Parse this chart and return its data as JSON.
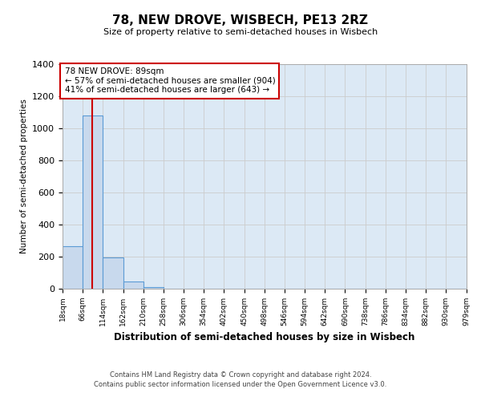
{
  "title": "78, NEW DROVE, WISBECH, PE13 2RZ",
  "subtitle": "Size of property relative to semi-detached houses in Wisbech",
  "xlabel": "Distribution of semi-detached houses by size in Wisbech",
  "ylabel": "Number of semi-detached properties",
  "bin_edges": [
    18,
    66,
    114,
    162,
    210,
    258,
    306,
    354,
    402,
    450,
    498,
    546,
    594,
    642,
    690,
    738,
    786,
    834,
    882,
    930,
    979
  ],
  "bin_labels": [
    "18sqm",
    "66sqm",
    "114sqm",
    "162sqm",
    "210sqm",
    "258sqm",
    "306sqm",
    "354sqm",
    "402sqm",
    "450sqm",
    "498sqm",
    "546sqm",
    "594sqm",
    "642sqm",
    "690sqm",
    "738sqm",
    "786sqm",
    "834sqm",
    "882sqm",
    "930sqm",
    "979sqm"
  ],
  "bar_heights": [
    265,
    1080,
    195,
    47,
    10,
    0,
    0,
    0,
    0,
    0,
    0,
    0,
    0,
    0,
    0,
    0,
    0,
    0,
    0,
    0
  ],
  "bar_color": "#c8d9ed",
  "bar_edge_color": "#5b9bd5",
  "ylim": [
    0,
    1400
  ],
  "yticks": [
    0,
    200,
    400,
    600,
    800,
    1000,
    1200,
    1400
  ],
  "property_line_x": 89,
  "property_line_color": "#cc0000",
  "annotation_title": "78 NEW DROVE: 89sqm",
  "annotation_line1": "← 57% of semi-detached houses are smaller (904)",
  "annotation_line2": "41% of semi-detached houses are larger (643) →",
  "annotation_box_color": "#ffffff",
  "annotation_box_edge_color": "#cc0000",
  "grid_color": "#cccccc",
  "background_color": "#dce9f5",
  "footer_line1": "Contains HM Land Registry data © Crown copyright and database right 2024.",
  "footer_line2": "Contains public sector information licensed under the Open Government Licence v3.0."
}
